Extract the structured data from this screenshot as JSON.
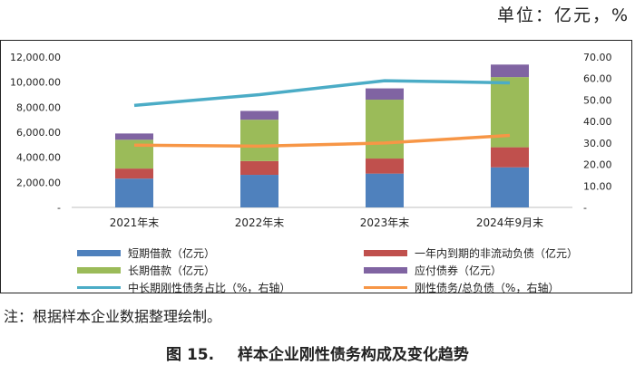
{
  "unit_label": "单位：亿元，%",
  "note": "注：根据样本企业数据整理绘制。",
  "caption": {
    "number": "图 15.",
    "title": "样本企业刚性债务构成及变化趋势"
  },
  "chart_data": {
    "type": "bar",
    "stacked": true,
    "categories": [
      "2021年末",
      "2022年末",
      "2023年末",
      "2024年9月末"
    ],
    "series": [
      {
        "name": "短期借款（亿元）",
        "type": "bar",
        "axis": "left",
        "color": "#4f81bd",
        "values": [
          2300,
          2600,
          2700,
          3200
        ]
      },
      {
        "name": "一年内到期的非流动负债（亿元）",
        "type": "bar",
        "axis": "left",
        "color": "#c0504d",
        "values": [
          800,
          1100,
          1200,
          1600
        ]
      },
      {
        "name": "长期借款（亿元）",
        "type": "bar",
        "axis": "left",
        "color": "#9bbb59",
        "values": [
          2300,
          3300,
          4700,
          5600
        ]
      },
      {
        "name": "应付债券（亿元）",
        "type": "bar",
        "axis": "left",
        "color": "#8064a2",
        "values": [
          500,
          700,
          900,
          1000
        ]
      },
      {
        "name": "中长期刚性债务占比（%，右轴）",
        "type": "line",
        "axis": "right",
        "color": "#4bacc6",
        "values": [
          47.5,
          52.5,
          59,
          58
        ]
      },
      {
        "name": "刚性债务/总负债（%，右轴）",
        "type": "line",
        "axis": "right",
        "color": "#f79646",
        "values": [
          29,
          28.5,
          30,
          33.5
        ]
      }
    ],
    "y_left": {
      "min": 0,
      "max": 12000,
      "ticks": [
        "-",
        "2,000.00",
        "4,000.00",
        "6,000.00",
        "8,000.00",
        "10,000.00",
        "12,000.00"
      ]
    },
    "y_right": {
      "min": 0,
      "max": 70,
      "ticks": [
        "-",
        "10.00",
        "20.00",
        "30.00",
        "40.00",
        "50.00",
        "60.00",
        "70.00"
      ]
    },
    "legend_position": "bottom",
    "grid": false
  }
}
